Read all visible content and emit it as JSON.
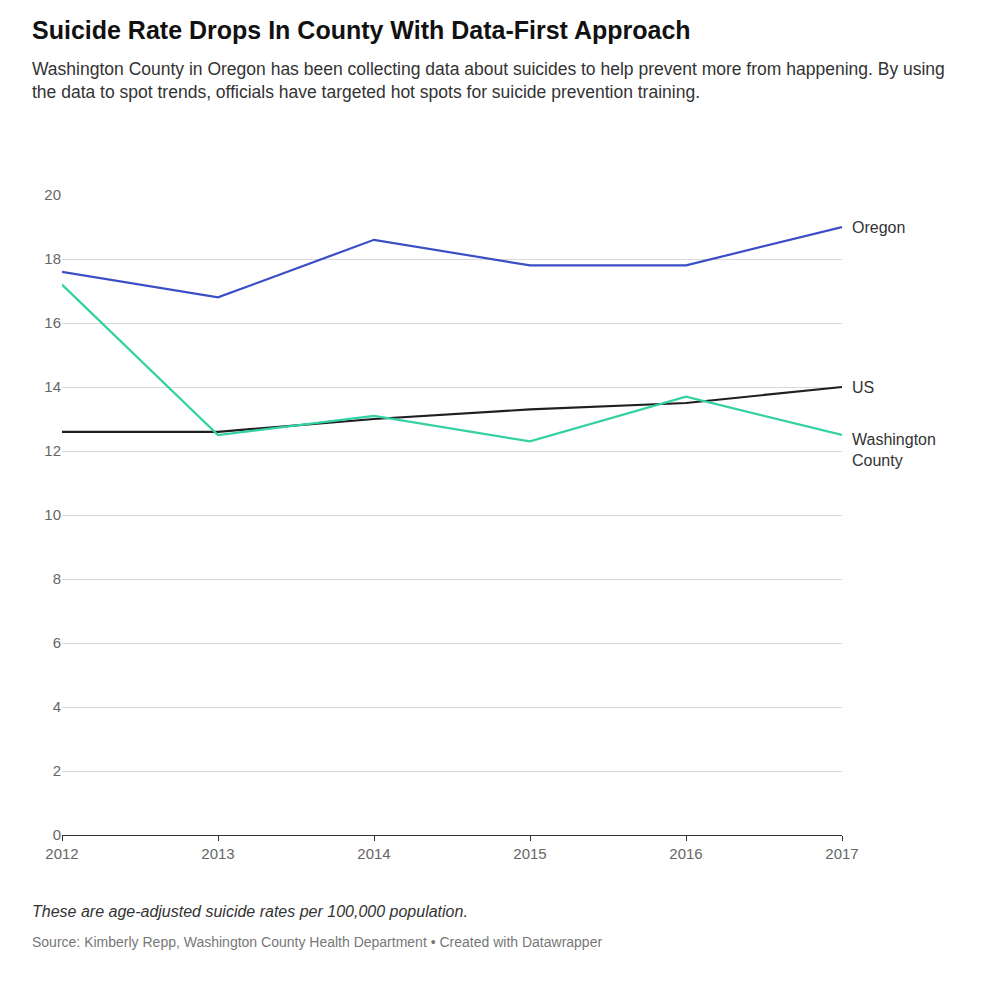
{
  "chart_data": {
    "type": "line",
    "title": "Suicide Rate Drops In County With Data-First Approach",
    "subtitle": "Washington County in Oregon has been collecting data about suicides to help prevent more from happening. By using the data to spot trends, officials have targeted hot spots for suicide prevention training.",
    "footnote": "These are age-adjusted suicide rates per 100,000 population.",
    "source": "Source: Kimberly Repp, Washington County Health Department • Created with Datawrapper",
    "x": [
      2012,
      2013,
      2014,
      2015,
      2016,
      2017
    ],
    "xlim": [
      2012,
      2017
    ],
    "xticks": [
      2012,
      2013,
      2014,
      2015,
      2016,
      2017
    ],
    "ylim": [
      0,
      20
    ],
    "yticks": [
      0,
      2,
      4,
      6,
      8,
      10,
      12,
      14,
      16,
      18,
      20
    ],
    "grid": true,
    "series": [
      {
        "name": "Oregon",
        "color": "#3a4fc6",
        "values": [
          17.6,
          16.8,
          18.6,
          17.8,
          17.8,
          19.0
        ]
      },
      {
        "name": "US",
        "color": "#1f1f1f",
        "values": [
          12.6,
          12.6,
          13.0,
          13.3,
          13.5,
          14.0
        ]
      },
      {
        "name": "Washington County",
        "color": "#33d1a3",
        "values": [
          17.2,
          12.5,
          13.1,
          12.3,
          13.7,
          12.5
        ]
      }
    ]
  }
}
